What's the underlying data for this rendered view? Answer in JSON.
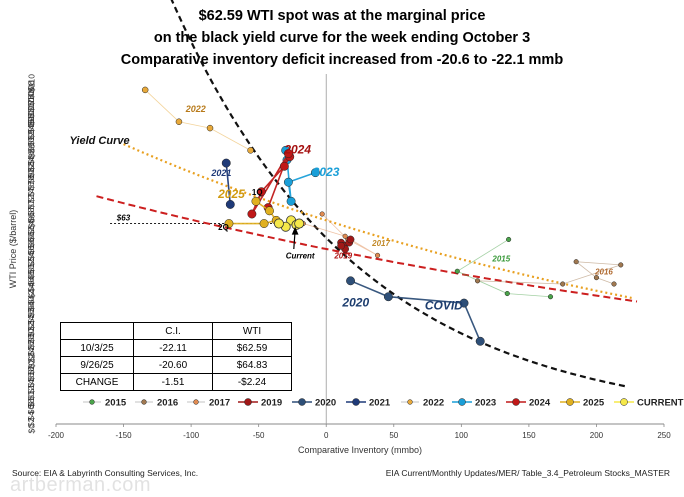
{
  "title": {
    "line1": "$62.59 WTI spot was at the marginal price",
    "line2": "on the black yield curve for the week ending October 3",
    "line3": "Comparative inventory deficit increased from -20.6 to -22.1 mmb"
  },
  "footer": {
    "source_left": "Source:  EIA  & Labyrinth Consulting Services, Inc.",
    "source_right": "EIA Current/Monthly Updates/MER/ Table_3.4_Petroleum Stocks_MASTER",
    "watermark": "artberman.com"
  },
  "table": {
    "headers": [
      "",
      "C.I.",
      "WTI"
    ],
    "rows": [
      [
        "10/3/25",
        "-22.11",
        "$62.59"
      ],
      [
        "9/26/25",
        "-20.60",
        "$64.83"
      ],
      [
        "CHANGE",
        "-1.51",
        "-$2.24"
      ]
    ]
  },
  "chart_data": {
    "type": "scatter",
    "xlabel": "Comparative Inventory (mmbo)",
    "ylabel": "WTI Price ($/barrel)",
    "xlim": [
      -200,
      250
    ],
    "ylim": [
      0,
      110
    ],
    "x_ticks": [
      -200,
      -150,
      -100,
      -50,
      0,
      50,
      100,
      150,
      200,
      250
    ],
    "y_ticks": [
      0,
      2,
      4,
      6,
      8,
      10,
      12,
      14,
      16,
      18,
      20,
      22,
      24,
      26,
      28,
      30,
      32,
      34,
      36,
      38,
      40,
      42,
      44,
      46,
      48,
      50,
      52,
      54,
      56,
      58,
      60,
      62,
      64,
      66,
      68,
      70,
      72,
      74,
      76,
      78,
      80,
      82,
      84,
      86,
      88,
      90,
      92,
      94,
      96,
      98,
      100,
      102,
      104,
      106,
      108,
      110
    ],
    "y_tick_labels": [
      "$0",
      "$2",
      "$4",
      "$6",
      "$8",
      "$10",
      "$12",
      "$14",
      "$16",
      "$18",
      "$20",
      "$22",
      "$24",
      "$26",
      "$28",
      "$30",
      "$32",
      "$34",
      "$36",
      "$38",
      "$40",
      "$42",
      "$44",
      "$46",
      "$48",
      "$50",
      "$52",
      "$54",
      "$56",
      "$58",
      "$60",
      "$62",
      "$64",
      "$66",
      "$68",
      "$70",
      "$72",
      "$74",
      "$76",
      "$78",
      "$80",
      "$82",
      "$84",
      "$86",
      "$88",
      "$90",
      "$92",
      "$94",
      "$96",
      "$98",
      "$100",
      "$102",
      "$104",
      "$106",
      "$108",
      "$110"
    ],
    "grid": false,
    "legend_position": "bottom",
    "reference": {
      "label": "$63",
      "y": 63
    },
    "series": [
      {
        "name": "2015",
        "color": "#4aa34a",
        "size": 2.3,
        "label": "2015",
        "label_color": "#3a9a3a",
        "points": [
          [
            135,
            58
          ],
          [
            97,
            48
          ],
          [
            134,
            41
          ],
          [
            166,
            40
          ]
        ]
      },
      {
        "name": "2016",
        "color": "#a07850",
        "size": 2.3,
        "label": "2016",
        "label_color": "#b06a30",
        "points": [
          [
            213,
            44
          ],
          [
            200,
            46
          ],
          [
            185,
            51
          ],
          [
            218,
            50
          ],
          [
            175,
            44
          ],
          [
            112,
            45
          ]
        ]
      },
      {
        "name": "2017",
        "color": "#e08a50",
        "size": 2.3,
        "label": "2017",
        "label_color": "#c28a2a",
        "points": [
          [
            -3,
            66
          ],
          [
            16,
            58
          ],
          [
            38,
            53
          ],
          [
            14,
            59
          ],
          [
            -17,
            63
          ]
        ]
      },
      {
        "name": "2019",
        "color": "#a01818",
        "size": 3.6,
        "label": "2019",
        "label_color": "#b01818",
        "points": [
          [
            11,
            57
          ],
          [
            13,
            56
          ],
          [
            17,
            57
          ],
          [
            14,
            55
          ],
          [
            11,
            56
          ],
          [
            18,
            58
          ]
        ]
      },
      {
        "name": "2020",
        "color": "#2e4f78",
        "size": 4.2,
        "label": "2020",
        "label_color": "#1d3d6e",
        "points": [
          [
            18,
            45
          ],
          [
            46,
            40
          ],
          [
            102,
            38
          ],
          [
            114,
            26
          ]
        ]
      },
      {
        "name": "2021",
        "color": "#1f3a78",
        "size": 4.2,
        "label": "2021",
        "label_color": "#1f3a78",
        "points": [
          [
            -74,
            82
          ],
          [
            -71,
            69
          ]
        ]
      },
      {
        "name": "2022",
        "color": "#e8a93a",
        "size": 3.0,
        "label": "2022",
        "label_color": "#b87a1a",
        "points": [
          [
            -134,
            105
          ],
          [
            -109,
            95
          ],
          [
            -86,
            93
          ],
          [
            -56,
            86
          ]
        ]
      },
      {
        "name": "2023",
        "color": "#1a9fd8",
        "size": 4.2,
        "label": "2023",
        "label_color": "#1a9fd8",
        "points": [
          [
            -8,
            79
          ],
          [
            -28,
            76
          ],
          [
            -26,
            70
          ],
          [
            -29,
            83
          ],
          [
            -30,
            86
          ]
        ]
      },
      {
        "name": "2024",
        "color": "#c01818",
        "size": 4.2,
        "label": "2024",
        "label_color": "#a51010",
        "points": [
          [
            -27,
            84
          ],
          [
            -31,
            81
          ],
          [
            -48,
            73
          ],
          [
            -55,
            66
          ],
          [
            -28,
            85
          ],
          [
            -43,
            68
          ]
        ]
      },
      {
        "name": "2025",
        "color": "#e0b020",
        "size": 4.2,
        "label": "2025",
        "label_color": "#d09a10",
        "points": [
          [
            -52,
            70
          ],
          [
            -42,
            67
          ],
          [
            -37,
            64
          ],
          [
            -46,
            63
          ],
          [
            -72,
            63
          ]
        ]
      },
      {
        "name": "CURRENT",
        "color": "#f5e84a",
        "size": 4.6,
        "label": "",
        "label_color": "#000000",
        "points": [
          [
            -26,
            64
          ],
          [
            -30,
            62
          ],
          [
            -35,
            63
          ],
          [
            -22,
            62.6
          ],
          [
            -20,
            63
          ]
        ]
      }
    ],
    "trendlines": [
      {
        "name": "Yield Curve",
        "color": "#111111",
        "dash": "6,4",
        "width": 2.2,
        "a": 58.5,
        "b": -0.0072,
        "x_from": -170,
        "x_to": 225
      },
      {
        "name": "red",
        "color": "#cc1f1f",
        "dash": "7,4",
        "width": 2.0,
        "a": 55,
        "b": -0.00155,
        "x_from": -170,
        "x_to": 230
      },
      {
        "name": "orange",
        "color": "#e8a020",
        "dash": "2,3",
        "width": 2.2,
        "a": 64,
        "b": -0.00212,
        "x_from": -150,
        "x_to": 228
      }
    ],
    "annotations": [
      {
        "text": "Yield Curve",
        "x": -190,
        "y": 88,
        "color": "#111111",
        "bold": true,
        "italic": true,
        "size": 11
      },
      {
        "text": "2022",
        "x": -104,
        "y": 98,
        "color": "#b87a1a",
        "bold": true,
        "italic": true,
        "size": 9
      },
      {
        "text": "2021",
        "x": -85,
        "y": 78,
        "color": "#1f3a78",
        "bold": true,
        "italic": true,
        "size": 9
      },
      {
        "text": "2025",
        "x": -80,
        "y": 71,
        "color": "#d09a10",
        "bold": true,
        "italic": true,
        "size": 12
      },
      {
        "text": "1Q",
        "x": -55,
        "y": 72,
        "color": "#000000",
        "bold": true,
        "italic": false,
        "size": 8
      },
      {
        "text": "2Q",
        "x": -80,
        "y": 61,
        "color": "#000000",
        "bold": true,
        "italic": false,
        "size": 8
      },
      {
        "text": "2024",
        "x": -31,
        "y": 85,
        "color": "#a51010",
        "bold": true,
        "italic": true,
        "size": 12
      },
      {
        "text": "2023",
        "x": -10,
        "y": 78,
        "color": "#1a9fd8",
        "bold": true,
        "italic": true,
        "size": 12
      },
      {
        "text": "$63",
        "x": -155,
        "y": 64,
        "color": "#000000",
        "bold": true,
        "italic": true,
        "size": 8
      },
      {
        "text": "Current",
        "x": -30,
        "y": 52,
        "color": "#000000",
        "bold": true,
        "italic": true,
        "size": 8
      },
      {
        "text": "2017",
        "x": 34,
        "y": 56,
        "color": "#c28a2a",
        "bold": true,
        "italic": true,
        "size": 8
      },
      {
        "text": "2019",
        "x": 6,
        "y": 52,
        "color": "#b01818",
        "bold": true,
        "italic": true,
        "size": 8
      },
      {
        "text": "2015",
        "x": 123,
        "y": 51,
        "color": "#3a9a3a",
        "bold": true,
        "italic": true,
        "size": 8
      },
      {
        "text": "2016",
        "x": 199,
        "y": 47,
        "color": "#b06a30",
        "bold": true,
        "italic": true,
        "size": 8
      },
      {
        "text": "2020",
        "x": 12,
        "y": 37,
        "color": "#1d3d6e",
        "bold": true,
        "italic": true,
        "size": 12
      },
      {
        "text": "COVID",
        "x": 73,
        "y": 36,
        "color": "#1d3d6e",
        "bold": true,
        "italic": true,
        "size": 12
      }
    ],
    "legend": [
      "2015",
      "2016",
      "2017",
      "2019",
      "2020",
      "2021",
      "2022",
      "2023",
      "2024",
      "2025",
      "CURRENT"
    ]
  }
}
